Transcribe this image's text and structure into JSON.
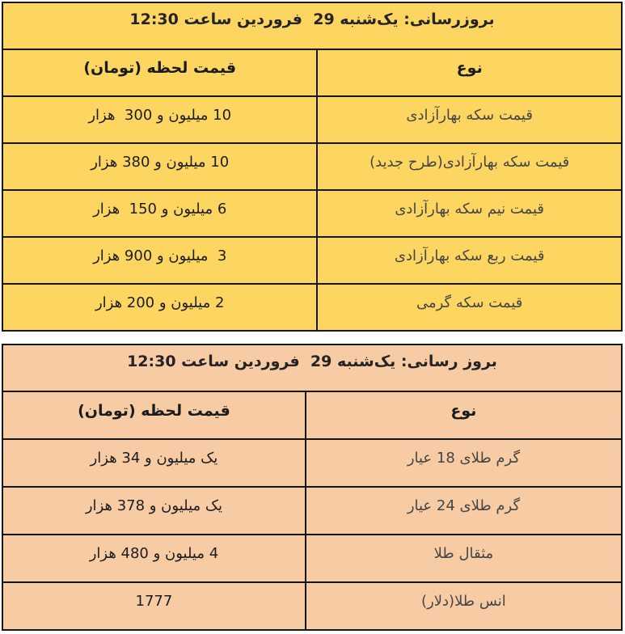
{
  "colors": {
    "border": "#161616",
    "page_background": "#FFFFFF",
    "coin_table_background": "#FDD662",
    "gold_table_background": "#F7CBA3"
  },
  "chart_data": [
    {
      "type": "table",
      "name": "coin-prices",
      "title": "بروزرسانی: یک‌شنبه 29  فروردین ساعت 12:30",
      "columns": {
        "item": "نوع",
        "price": "قیمت لحظه (تومان)"
      },
      "rows": [
        {
          "item": "قیمت سکه بهارآزادی",
          "price": "10 میلیون و 300  هزار"
        },
        {
          "item": "قیمت سکه بهارآزادی(طرح جدید)",
          "price": "10 میلیون و 380 هزار"
        },
        {
          "item": "قیمت نیم سکه بهارآزادی",
          "price": "6 میلیون و 150  هزار"
        },
        {
          "item": "قیمت ربع سکه بهارآزادی",
          "price": "3  میلیون و 900 هزار"
        },
        {
          "item": "قیمت سکه گرمی",
          "price": "2 میلیون و 200 هزار"
        }
      ],
      "background_color": "#FDD662",
      "layout": {
        "direction": "rtl",
        "item_column_side": "right",
        "price_column_side": "left"
      }
    },
    {
      "type": "table",
      "name": "gold-prices",
      "title": "بروز رسانی: یک‌شنبه 29  فروردین ساعت 12:30",
      "columns": {
        "item": "نوع",
        "price": "قیمت لحظه (تومان)"
      },
      "rows": [
        {
          "item": "گرم طلای 18 عیار",
          "price": "یک میلیون و 34 هزار"
        },
        {
          "item": "گرم طلای 24 عیار",
          "price": "یک میلیون و 378 هزار"
        },
        {
          "item": "مثقال طلا",
          "price": "4 میلیون و 480 هزار"
        },
        {
          "item": "انس طلا(دلار)",
          "price": "1777"
        }
      ],
      "background_color": "#F7CBA3",
      "layout": {
        "direction": "rtl",
        "item_column_side": "right",
        "price_column_side": "left"
      }
    }
  ]
}
